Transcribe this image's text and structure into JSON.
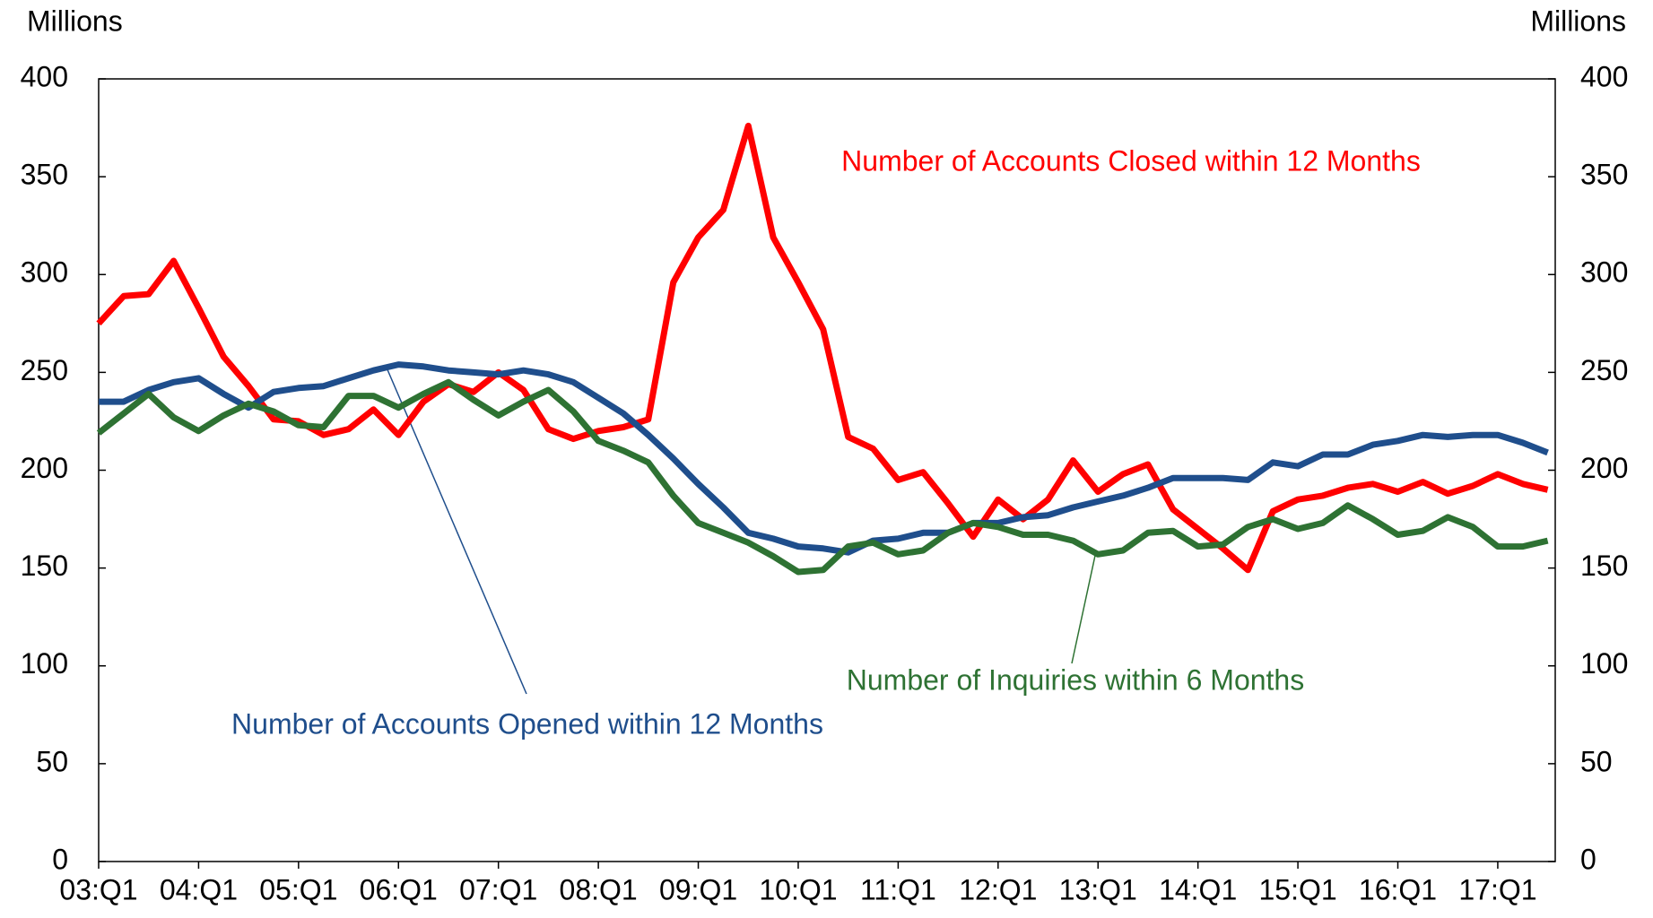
{
  "chart_data": {
    "type": "line",
    "y_label": "Millions",
    "y2_label": "Millions",
    "categories": [
      "03:Q1",
      null,
      null,
      null,
      "04:Q1",
      null,
      null,
      null,
      "05:Q1",
      null,
      null,
      null,
      "06:Q1",
      null,
      null,
      null,
      "07:Q1",
      null,
      null,
      null,
      "08:Q1",
      null,
      null,
      null,
      "09:Q1",
      null,
      null,
      null,
      "10:Q1",
      null,
      null,
      null,
      "11:Q1",
      null,
      null,
      null,
      "12:Q1",
      null,
      null,
      null,
      "13:Q1",
      null,
      null,
      null,
      "14:Q1",
      null,
      null,
      null,
      "15:Q1",
      null,
      null,
      null,
      "16:Q1",
      null,
      null,
      null,
      "17:Q1",
      null,
      null
    ],
    "series": [
      {
        "name": "Number of Accounts Closed within 12 Months",
        "color": "#ff0000",
        "values": [
          275,
          289,
          290,
          307,
          283,
          258,
          243,
          226,
          225,
          218,
          221,
          231,
          218,
          235,
          244,
          240,
          250,
          241,
          221,
          216,
          220,
          222,
          226,
          296,
          319,
          333,
          376,
          319,
          296,
          272,
          217,
          211,
          195,
          199,
          183,
          166,
          185,
          175,
          185,
          205,
          189,
          198,
          203,
          180,
          170,
          160,
          149,
          179,
          185,
          187,
          191,
          193,
          189,
          194,
          188,
          192,
          198,
          193,
          190
        ]
      },
      {
        "name": "Number of Accounts Opened within 12 Months",
        "color": "#1f4e8c",
        "values": [
          235,
          235,
          241,
          245,
          247,
          239,
          232,
          240,
          242,
          243,
          247,
          251,
          254,
          253,
          251,
          250,
          249,
          251,
          249,
          245,
          237,
          229,
          218,
          206,
          193,
          181,
          168,
          165,
          161,
          160,
          158,
          164,
          165,
          168,
          168,
          173,
          173,
          176,
          177,
          181,
          184,
          187,
          191,
          196,
          196,
          196,
          195,
          204,
          202,
          208,
          208,
          213,
          215,
          218,
          217,
          218,
          218,
          214,
          209
        ]
      },
      {
        "name": "Number of Inquiries within 6 Months",
        "color": "#2e7233",
        "values": [
          219,
          229,
          239,
          227,
          220,
          228,
          234,
          230,
          223,
          222,
          238,
          238,
          232,
          239,
          245,
          236,
          228,
          235,
          241,
          230,
          215,
          210,
          204,
          187,
          173,
          168,
          163,
          156,
          148,
          149,
          161,
          163,
          157,
          159,
          168,
          173,
          171,
          167,
          167,
          164,
          157,
          159,
          168,
          169,
          161,
          162,
          171,
          175,
          170,
          173,
          182,
          175,
          167,
          169,
          176,
          171,
          161,
          161,
          164
        ]
      }
    ],
    "ylim": [
      0,
      400
    ],
    "yticks": [
      0,
      50,
      100,
      150,
      200,
      250,
      300,
      350,
      400
    ],
    "y2lim": [
      0,
      400
    ],
    "y2ticks": [
      0,
      50,
      100,
      150,
      200,
      250,
      300,
      350,
      400
    ]
  }
}
